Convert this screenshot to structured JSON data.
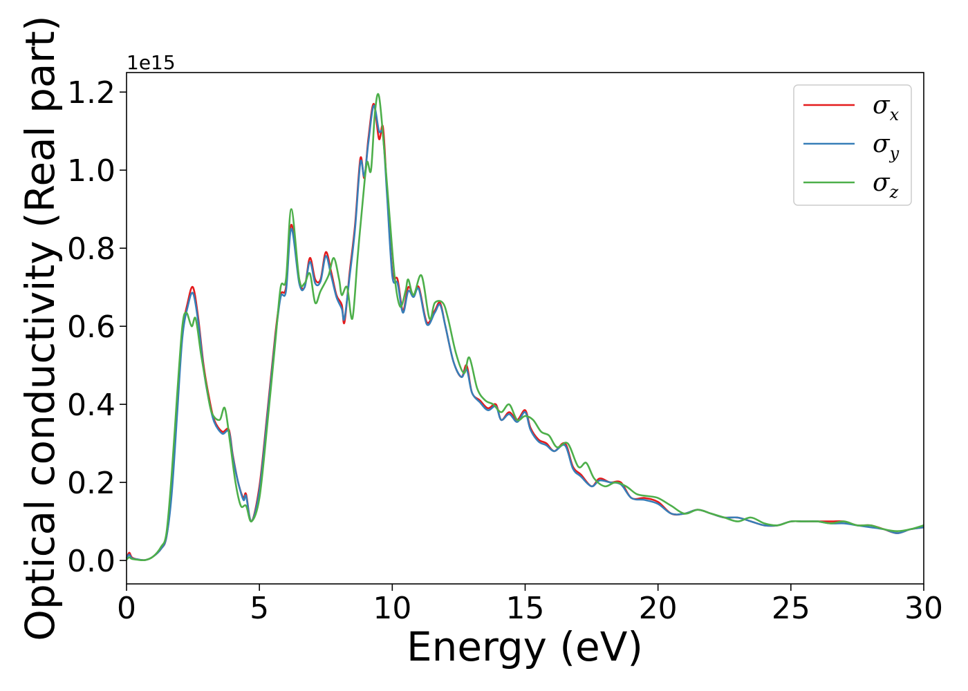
{
  "chart_data": {
    "type": "line",
    "title": "",
    "xlabel": "Energy (eV)",
    "ylabel": "Optical conductivity (Real part)",
    "y_offset_text": "1e15",
    "y_multiplier": 1000000000000000.0,
    "xlim": [
      0,
      30
    ],
    "ylim": [
      -0.06,
      1.25
    ],
    "xticks": [
      0,
      5,
      10,
      15,
      20,
      25,
      30
    ],
    "xtick_labels": [
      "0",
      "5",
      "10",
      "15",
      "20",
      "25",
      "30"
    ],
    "yticks": [
      0.0,
      0.2,
      0.4,
      0.6,
      0.8,
      1.0,
      1.2
    ],
    "ytick_labels": [
      "0.0",
      "0.2",
      "0.4",
      "0.6",
      "0.8",
      "1.0",
      "1.2"
    ],
    "grid": false,
    "legend_position": "top-right",
    "series": [
      {
        "name": "σx",
        "symbol": "σ",
        "subscript": "x",
        "color": "#e41a1c",
        "x": [
          0,
          0.1,
          0.2,
          0.4,
          0.7,
          1.0,
          1.3,
          1.5,
          1.7,
          1.9,
          2.1,
          2.3,
          2.5,
          2.7,
          2.9,
          3.1,
          3.3,
          3.6,
          3.85,
          4.0,
          4.2,
          4.4,
          4.5,
          4.7,
          5.0,
          5.3,
          5.6,
          5.8,
          6.0,
          6.2,
          6.5,
          6.7,
          6.9,
          7.1,
          7.3,
          7.5,
          7.7,
          7.9,
          8.1,
          8.2,
          8.4,
          8.6,
          8.8,
          8.95,
          9.1,
          9.3,
          9.5,
          9.65,
          9.8,
          10.0,
          10.2,
          10.4,
          10.6,
          10.8,
          11.0,
          11.3,
          11.6,
          11.8,
          12.0,
          12.3,
          12.6,
          12.8,
          13.0,
          13.3,
          13.6,
          13.9,
          14.1,
          14.4,
          14.7,
          15.0,
          15.2,
          15.5,
          15.8,
          16.1,
          16.5,
          16.8,
          17.1,
          17.5,
          17.8,
          18.2,
          18.6,
          19.0,
          19.5,
          20.0,
          20.5,
          21.0,
          21.5,
          22.0,
          22.5,
          23.0,
          23.5,
          24.0,
          24.5,
          25.0,
          25.5,
          26.0,
          26.5,
          27.0,
          27.5,
          28.0,
          28.5,
          29.0,
          29.5,
          30.0
        ],
        "y": [
          0.005,
          0.02,
          0.008,
          0.003,
          0.001,
          0.01,
          0.03,
          0.06,
          0.18,
          0.38,
          0.58,
          0.66,
          0.7,
          0.62,
          0.5,
          0.42,
          0.36,
          0.33,
          0.335,
          0.27,
          0.2,
          0.16,
          0.17,
          0.1,
          0.19,
          0.38,
          0.58,
          0.68,
          0.7,
          0.86,
          0.72,
          0.7,
          0.775,
          0.72,
          0.72,
          0.79,
          0.74,
          0.68,
          0.655,
          0.61,
          0.74,
          0.86,
          1.03,
          0.98,
          1.08,
          1.17,
          1.08,
          1.11,
          0.95,
          0.74,
          0.72,
          0.64,
          0.7,
          0.68,
          0.7,
          0.61,
          0.64,
          0.66,
          0.6,
          0.51,
          0.47,
          0.5,
          0.43,
          0.41,
          0.39,
          0.4,
          0.36,
          0.38,
          0.36,
          0.385,
          0.34,
          0.31,
          0.3,
          0.28,
          0.3,
          0.24,
          0.22,
          0.19,
          0.21,
          0.2,
          0.2,
          0.16,
          0.16,
          0.15,
          0.12,
          0.12,
          0.13,
          0.12,
          0.11,
          0.11,
          0.1,
          0.09,
          0.09,
          0.1,
          0.1,
          0.1,
          0.1,
          0.1,
          0.09,
          0.09,
          0.08,
          0.07,
          0.08,
          0.085
        ]
      },
      {
        "name": "σy",
        "symbol": "σ",
        "subscript": "y",
        "color": "#377eb8",
        "x": [
          0,
          0.1,
          0.2,
          0.4,
          0.7,
          1.0,
          1.3,
          1.5,
          1.7,
          1.9,
          2.1,
          2.3,
          2.5,
          2.7,
          2.9,
          3.1,
          3.3,
          3.6,
          3.85,
          4.0,
          4.2,
          4.4,
          4.5,
          4.7,
          5.0,
          5.3,
          5.6,
          5.8,
          6.0,
          6.2,
          6.5,
          6.7,
          6.9,
          7.1,
          7.3,
          7.5,
          7.7,
          7.9,
          8.1,
          8.2,
          8.4,
          8.6,
          8.8,
          8.95,
          9.1,
          9.3,
          9.5,
          9.65,
          9.8,
          10.0,
          10.2,
          10.4,
          10.6,
          10.8,
          11.0,
          11.3,
          11.6,
          11.8,
          12.0,
          12.3,
          12.6,
          12.8,
          13.0,
          13.3,
          13.6,
          13.9,
          14.1,
          14.4,
          14.7,
          15.0,
          15.2,
          15.5,
          15.8,
          16.1,
          16.5,
          16.8,
          17.1,
          17.5,
          17.8,
          18.2,
          18.6,
          19.0,
          19.5,
          20.0,
          20.5,
          21.0,
          21.5,
          22.0,
          22.5,
          23.0,
          23.5,
          24.0,
          24.5,
          25.0,
          25.5,
          26.0,
          26.5,
          27.0,
          27.5,
          28.0,
          28.5,
          29.0,
          29.5,
          30.0
        ],
        "y": [
          0.005,
          0.015,
          0.006,
          0.003,
          0.001,
          0.01,
          0.03,
          0.06,
          0.17,
          0.37,
          0.57,
          0.65,
          0.685,
          0.61,
          0.49,
          0.41,
          0.355,
          0.325,
          0.33,
          0.265,
          0.2,
          0.155,
          0.165,
          0.1,
          0.18,
          0.37,
          0.57,
          0.675,
          0.69,
          0.85,
          0.71,
          0.7,
          0.765,
          0.71,
          0.715,
          0.78,
          0.73,
          0.675,
          0.645,
          0.62,
          0.73,
          0.85,
          1.02,
          0.985,
          1.07,
          1.165,
          1.1,
          1.09,
          0.94,
          0.73,
          0.71,
          0.635,
          0.69,
          0.675,
          0.695,
          0.605,
          0.635,
          0.655,
          0.6,
          0.51,
          0.47,
          0.49,
          0.43,
          0.405,
          0.385,
          0.395,
          0.36,
          0.375,
          0.355,
          0.38,
          0.335,
          0.305,
          0.295,
          0.28,
          0.295,
          0.235,
          0.215,
          0.19,
          0.205,
          0.2,
          0.195,
          0.16,
          0.155,
          0.145,
          0.12,
          0.12,
          0.13,
          0.12,
          0.11,
          0.11,
          0.1,
          0.09,
          0.09,
          0.1,
          0.1,
          0.1,
          0.095,
          0.095,
          0.09,
          0.085,
          0.08,
          0.07,
          0.08,
          0.085
        ]
      },
      {
        "name": "σz",
        "symbol": "σ",
        "subscript": "z",
        "color": "#4daf4a",
        "x": [
          0,
          0.1,
          0.2,
          0.4,
          0.7,
          1.0,
          1.3,
          1.5,
          1.7,
          1.9,
          2.1,
          2.25,
          2.45,
          2.6,
          2.8,
          3.0,
          3.2,
          3.5,
          3.7,
          3.9,
          4.1,
          4.3,
          4.5,
          4.7,
          5.0,
          5.3,
          5.6,
          5.8,
          6.0,
          6.2,
          6.5,
          6.7,
          6.9,
          7.1,
          7.3,
          7.6,
          7.8,
          8.0,
          8.1,
          8.3,
          8.5,
          8.7,
          8.9,
          9.05,
          9.2,
          9.35,
          9.5,
          9.7,
          9.9,
          10.1,
          10.3,
          10.5,
          10.6,
          10.8,
          11.1,
          11.4,
          11.6,
          11.9,
          12.1,
          12.4,
          12.7,
          12.9,
          13.2,
          13.5,
          13.8,
          14.1,
          14.4,
          14.7,
          15.0,
          15.3,
          15.6,
          15.9,
          16.2,
          16.6,
          17.0,
          17.3,
          17.6,
          18.0,
          18.4,
          18.8,
          19.2,
          19.6,
          20.0,
          20.5,
          21.0,
          21.5,
          22.0,
          22.5,
          23.0,
          23.5,
          24.0,
          24.5,
          25.0,
          25.5,
          26.0,
          26.5,
          27.0,
          27.5,
          28.0,
          28.5,
          29.0,
          29.5,
          30.0
        ],
        "y": [
          0.002,
          0.008,
          0.004,
          0.002,
          0.001,
          0.01,
          0.035,
          0.07,
          0.22,
          0.42,
          0.6,
          0.635,
          0.6,
          0.62,
          0.53,
          0.45,
          0.38,
          0.36,
          0.39,
          0.3,
          0.2,
          0.14,
          0.14,
          0.1,
          0.16,
          0.35,
          0.56,
          0.7,
          0.72,
          0.9,
          0.72,
          0.71,
          0.735,
          0.66,
          0.69,
          0.73,
          0.775,
          0.72,
          0.68,
          0.7,
          0.62,
          0.78,
          0.93,
          1.02,
          1.0,
          1.15,
          1.19,
          1.05,
          0.88,
          0.72,
          0.65,
          0.69,
          0.72,
          0.68,
          0.73,
          0.62,
          0.66,
          0.66,
          0.62,
          0.53,
          0.48,
          0.52,
          0.44,
          0.41,
          0.4,
          0.38,
          0.4,
          0.36,
          0.37,
          0.36,
          0.33,
          0.32,
          0.29,
          0.3,
          0.24,
          0.25,
          0.21,
          0.19,
          0.2,
          0.19,
          0.17,
          0.165,
          0.16,
          0.14,
          0.12,
          0.13,
          0.12,
          0.11,
          0.1,
          0.11,
          0.095,
          0.09,
          0.1,
          0.1,
          0.1,
          0.095,
          0.1,
          0.09,
          0.09,
          0.08,
          0.075,
          0.08,
          0.09
        ]
      }
    ]
  }
}
